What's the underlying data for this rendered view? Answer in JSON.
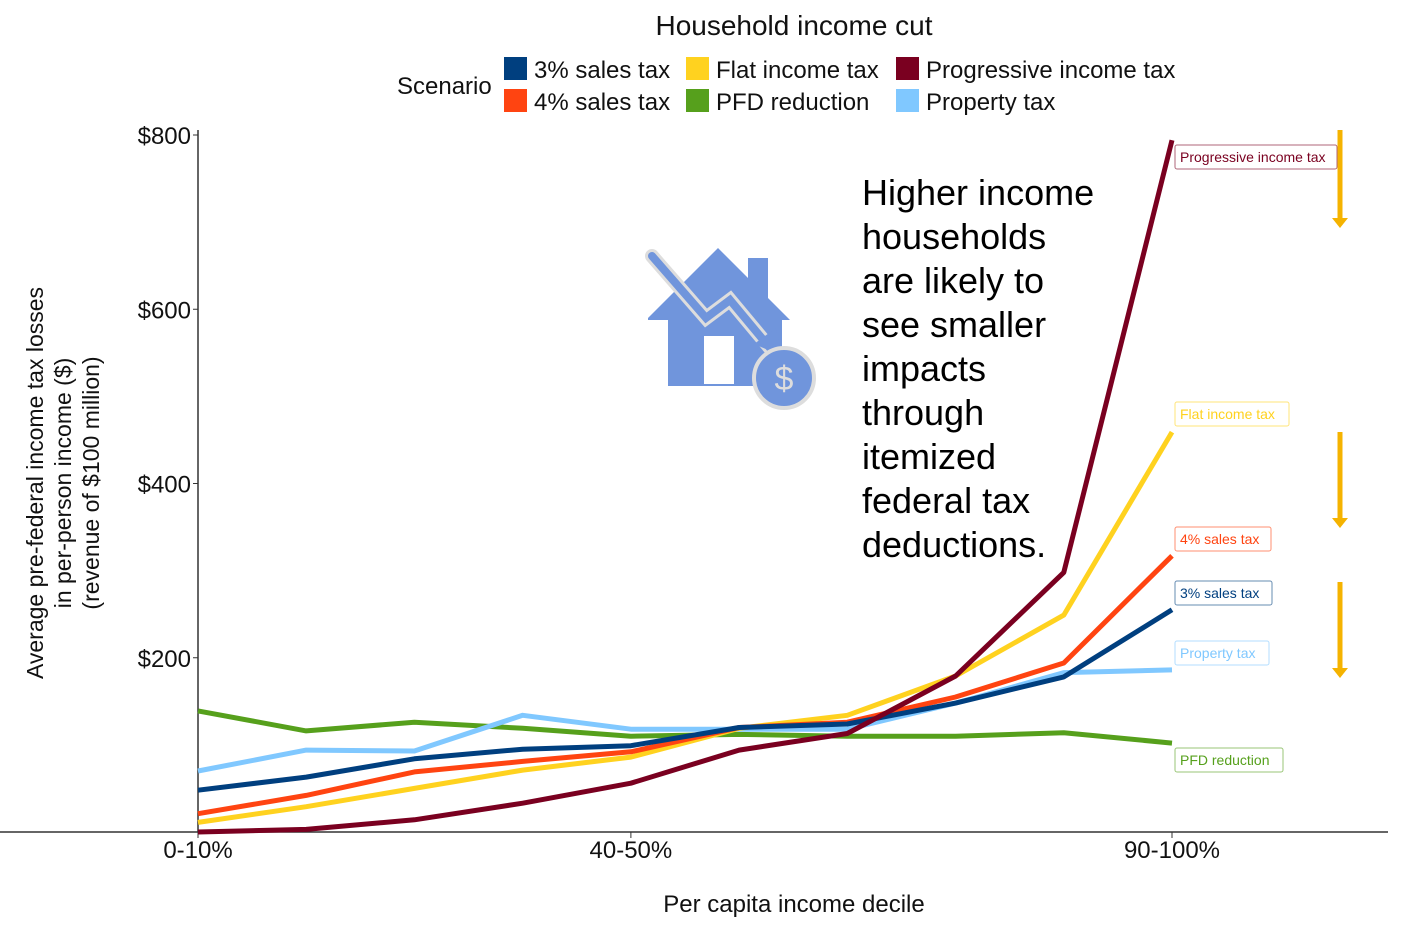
{
  "chart_data": {
    "type": "line",
    "title": "Household income cut",
    "legend_title": "Scenario",
    "legend_placement": "top",
    "xlabel": "Per capita income decile",
    "ylabel_lines": [
      "Average pre-federal income tax losses",
      "in per-person income ($)",
      "(revenue of $100 million)"
    ],
    "x": [
      1,
      2,
      3,
      4,
      5,
      6,
      7,
      8,
      9,
      10
    ],
    "x_tick_labels": [
      {
        "x": 1,
        "label": "0-10%"
      },
      {
        "x": 5,
        "label": "40-50%"
      },
      {
        "x": 10,
        "label": "90-100%"
      }
    ],
    "y_ticks": [
      {
        "v": 200,
        "label": "$200"
      },
      {
        "v": 400,
        "label": "$400"
      },
      {
        "v": 600,
        "label": "$600"
      },
      {
        "v": 800,
        "label": "$800"
      }
    ],
    "ylim": [
      0,
      800
    ],
    "grid": false,
    "series": [
      {
        "name": "3% sales tax",
        "color": "#003f7f",
        "values": [
          48,
          63,
          84,
          95,
          99,
          120,
          124,
          148,
          178,
          255
        ]
      },
      {
        "name": "4% sales tax",
        "color": "#ff4411",
        "values": [
          21,
          42,
          69,
          81,
          92,
          120,
          126,
          155,
          194,
          317
        ]
      },
      {
        "name": "Flat income tax",
        "color": "#ffd21f",
        "values": [
          11,
          29,
          50,
          71,
          86,
          119,
          134,
          179,
          249,
          459
        ]
      },
      {
        "name": "PFD reduction",
        "color": "#56a01c",
        "values": [
          139,
          116,
          126,
          119,
          110,
          112,
          110,
          110,
          114,
          102
        ]
      },
      {
        "name": "Progressive income tax",
        "color": "#7a0020",
        "values": [
          0,
          3,
          14,
          33,
          56,
          94,
          113,
          179,
          298,
          794
        ]
      },
      {
        "name": "Property tax",
        "color": "#80c8ff",
        "values": [
          70,
          94,
          93,
          134,
          118,
          118,
          118,
          148,
          183,
          186
        ]
      }
    ],
    "end_labels": [
      "Progressive income tax",
      "Flat income tax",
      "4% sales tax",
      "3% sales tax",
      "Property tax",
      "PFD reduction"
    ],
    "annotation_lines": [
      "Higher income",
      "households",
      "are likely to",
      "see smaller",
      "impacts",
      "through",
      "itemized",
      "federal tax",
      "deductions."
    ],
    "arrow_color": "#f5b300",
    "icon": "house-price-down-dollar-icon",
    "icon_color": "#7095dc"
  }
}
